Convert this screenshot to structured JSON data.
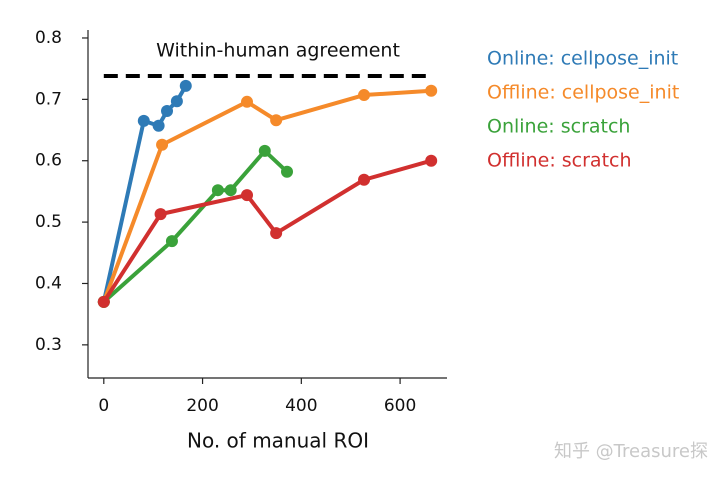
{
  "chart_data": {
    "type": "line",
    "xlabel": "No. of manual ROI",
    "annotation": "Within-human agreement",
    "reference_line": {
      "y": 0.738,
      "x": [
        0,
        663
      ],
      "color": "#000000"
    },
    "xlim": [
      -32,
      695
    ],
    "ylim": [
      0.246,
      0.813
    ],
    "xticks": [
      0,
      200,
      400,
      600
    ],
    "yticks": [
      0.3,
      0.4,
      0.5,
      0.6,
      0.7,
      0.8
    ],
    "legend": "right",
    "series": [
      {
        "name": "Online: cellpose_init",
        "color": "#2e7ab6",
        "x": [
          0,
          81,
          111,
          128,
          148,
          166
        ],
        "values": [
          0.37,
          0.665,
          0.657,
          0.681,
          0.697,
          0.722
        ]
      },
      {
        "name": "Offline: cellpose_init",
        "color": "#f58a2a",
        "x": [
          0,
          118,
          290,
          349,
          527,
          663
        ],
        "values": [
          0.37,
          0.626,
          0.696,
          0.666,
          0.707,
          0.714
        ]
      },
      {
        "name": "Online: scratch",
        "color": "#3aa23a",
        "x": [
          0,
          138,
          231,
          257,
          326,
          371
        ],
        "values": [
          0.37,
          0.469,
          0.552,
          0.552,
          0.616,
          0.582
        ]
      },
      {
        "name": "Offline: scratch",
        "color": "#d1302f",
        "x": [
          0,
          115,
          290,
          349,
          527,
          663
        ],
        "values": [
          0.37,
          0.513,
          0.544,
          0.482,
          0.569,
          0.6
        ]
      }
    ]
  },
  "watermark": "知乎 @Treasure探"
}
